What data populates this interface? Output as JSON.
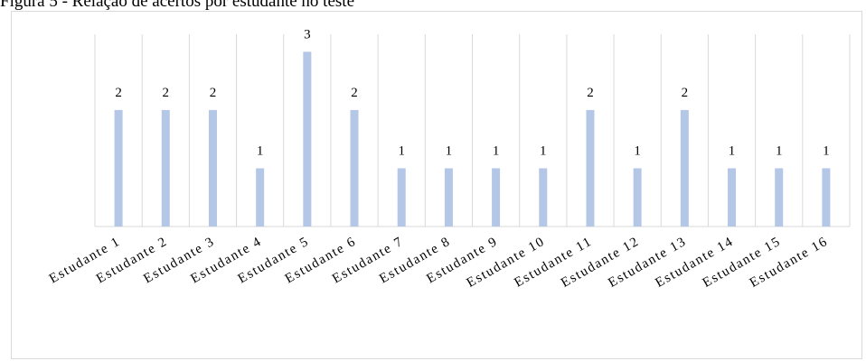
{
  "figure": {
    "title": "Figura 5 - Relação de acertos por estudante no teste"
  },
  "chart_data": {
    "type": "bar",
    "categories": [
      "Estudante 1",
      "Estudante 2",
      "Estudante 3",
      "Estudante 4",
      "Estudante 5",
      "Estudante 6",
      "Estudante 7",
      "Estudante 8",
      "Estudante 9",
      "Estudante 10",
      "Estudante 11",
      "Estudante 12",
      "Estudante 13",
      "Estudante 14",
      "Estudante 15",
      "Estudante 16"
    ],
    "values": [
      2,
      2,
      2,
      1,
      3,
      2,
      1,
      1,
      1,
      1,
      2,
      1,
      2,
      1,
      1,
      1
    ],
    "title": "",
    "xlabel": "",
    "ylabel": "",
    "ylim": [
      0,
      3.3
    ],
    "grid": true,
    "data_labels": true,
    "legend": "none",
    "colors": {
      "bar": "#b4c7e7",
      "grid": "#d9d9d9",
      "axis": "#d9d9d9",
      "text": "#000000"
    }
  }
}
